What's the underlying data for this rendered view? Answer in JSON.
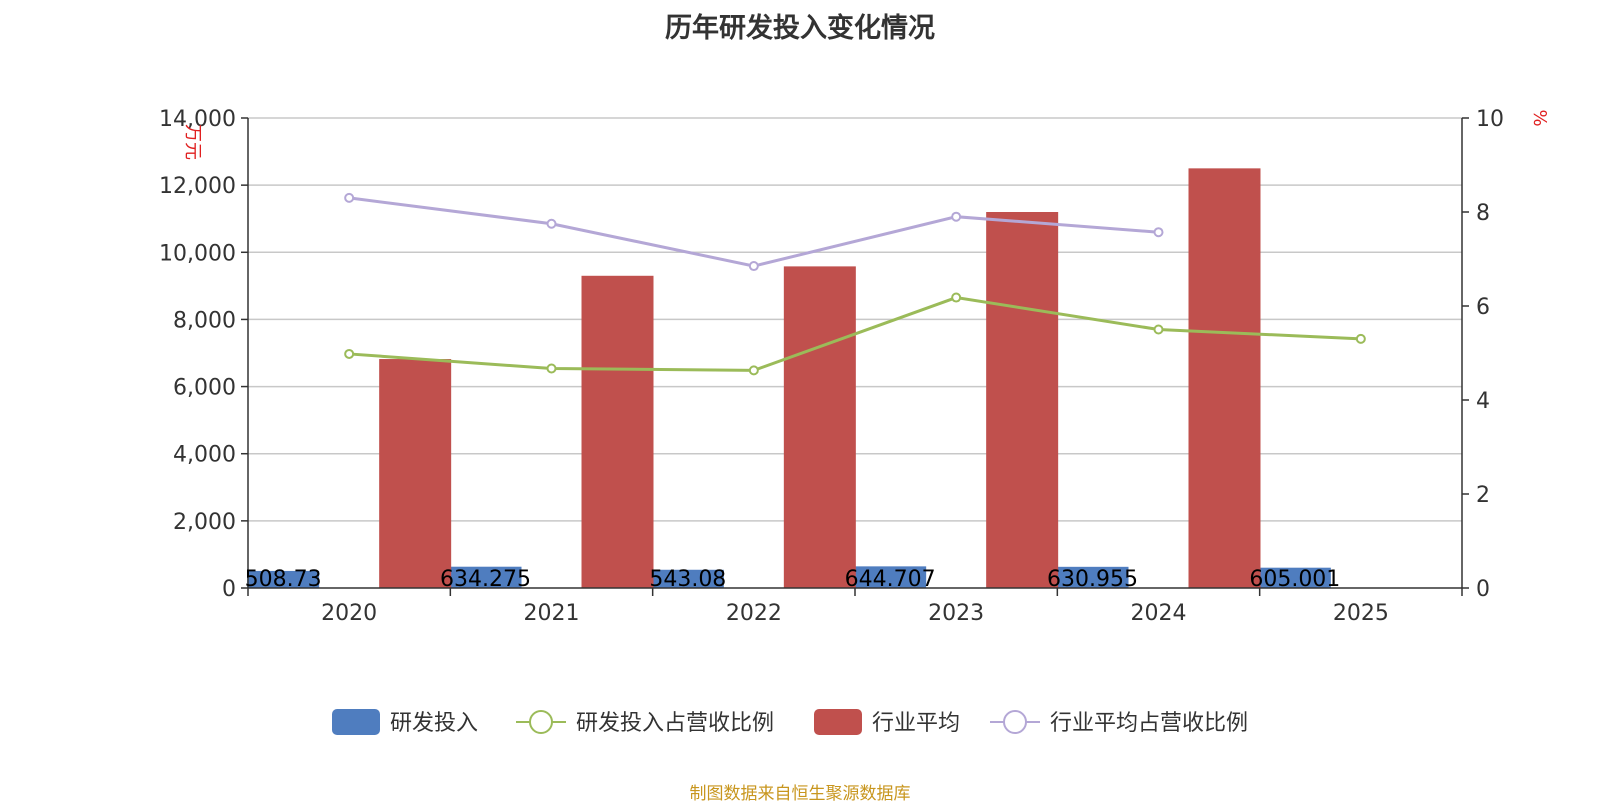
{
  "chart_data": {
    "type": "bar",
    "title": "历年研发投入变化情况",
    "categories": [
      "2020",
      "2021",
      "2022",
      "2023",
      "2024",
      "2025"
    ],
    "y_left": {
      "unit": "万元",
      "range": [
        0,
        14000
      ],
      "ticks": [
        0,
        2000,
        4000,
        6000,
        8000,
        10000,
        12000,
        14000
      ],
      "tick_labels": [
        "0",
        "2,000",
        "4,000",
        "6,000",
        "8,000",
        "10,000",
        "12,000",
        "14,000"
      ]
    },
    "y_right": {
      "unit": "%",
      "range": [
        0,
        10
      ],
      "ticks": [
        0,
        2,
        4,
        6,
        8,
        10
      ],
      "tick_labels": [
        "0",
        "2",
        "4",
        "6",
        "8",
        "10"
      ]
    },
    "grid": true,
    "legend_position": "bottom-center",
    "series": [
      {
        "name": "研发投入",
        "type": "bar",
        "axis": "left",
        "color": "#4f7dbf",
        "values": [
          508.73,
          634.275,
          543.08,
          644.707,
          630.955,
          605.001
        ],
        "labels": [
          "508.73",
          "634.275",
          "543.08",
          "644.707",
          "630.955",
          "605.001"
        ]
      },
      {
        "name": "研发投入占营收比例",
        "type": "line",
        "axis": "right",
        "color": "#9bbb59",
        "values": [
          4.98,
          4.67,
          4.63,
          6.18,
          5.5,
          5.3
        ]
      },
      {
        "name": "行业平均",
        "type": "bar",
        "axis": "left",
        "color": "#c0504d",
        "values": [
          6820,
          9300,
          9580,
          11200,
          12500,
          null
        ]
      },
      {
        "name": "行业平均占营收比例",
        "type": "line",
        "axis": "right",
        "color": "#b4a7d6",
        "values": [
          8.3,
          7.75,
          6.85,
          7.9,
          7.57,
          null
        ]
      }
    ]
  },
  "source_note": "制图数据来自恒生聚源数据库"
}
